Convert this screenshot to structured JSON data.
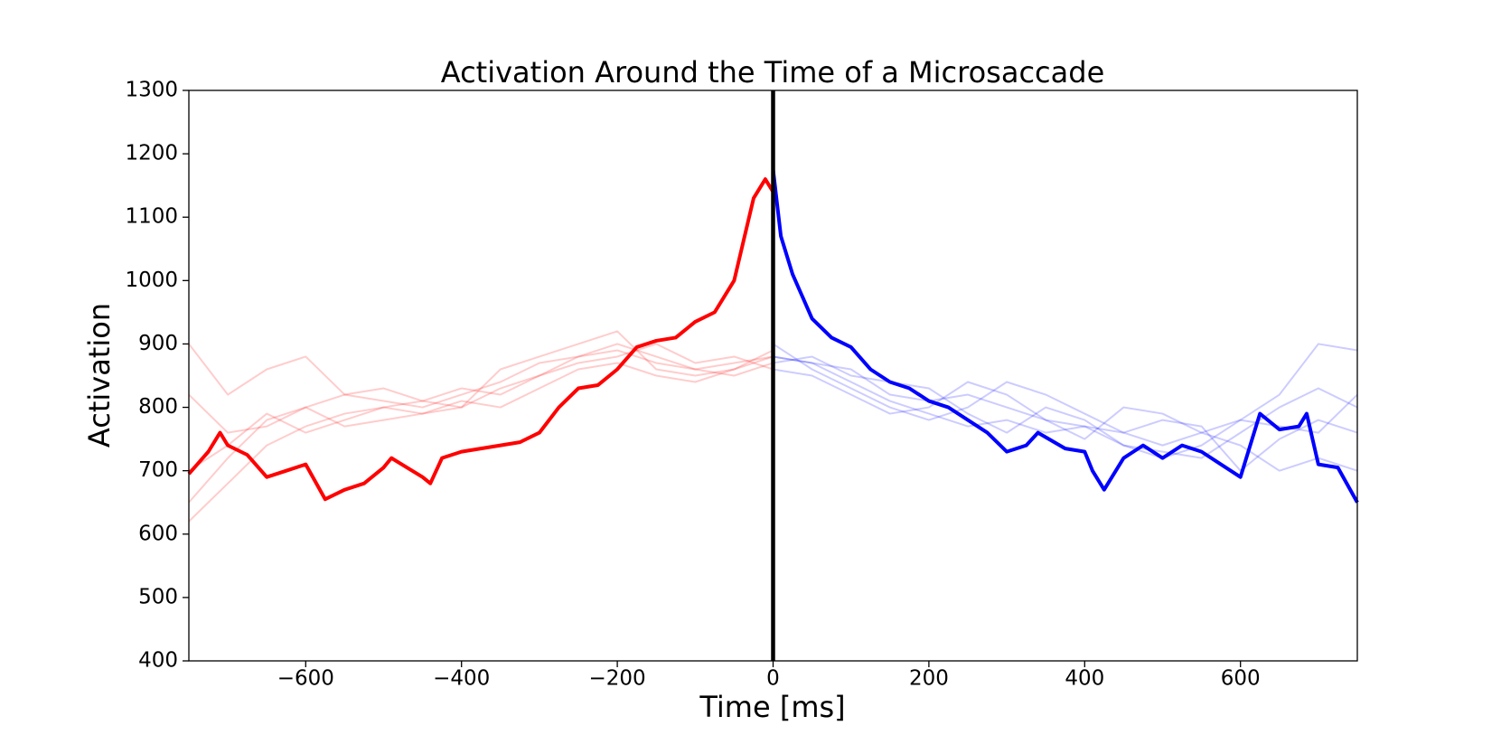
{
  "chart_data": {
    "type": "line",
    "title": "Activation Around the Time of a Microsaccade",
    "x_label": "Time [ms]",
    "y_label": "Activation",
    "xlim": [
      -750,
      750
    ],
    "ylim": [
      400,
      1300
    ],
    "xticks": [
      {
        "value": -600,
        "label": "−600"
      },
      {
        "value": -400,
        "label": "−400"
      },
      {
        "value": -200,
        "label": "−200"
      },
      0,
      200,
      400,
      600
    ],
    "yticks": [
      400,
      500,
      600,
      700,
      800,
      900,
      1000,
      1100,
      1200,
      1300
    ],
    "vline": {
      "x": 0,
      "color": "#000000"
    },
    "series": [
      {
        "color": "rgba(255,0,0,0.2)",
        "width": 2,
        "x": [
          -750,
          -700,
          -650,
          -600,
          -550,
          -500,
          -450,
          -400,
          -350,
          -300,
          -250,
          -200,
          -150,
          -100,
          -50,
          0
        ],
        "values": [
          900,
          820,
          860,
          880,
          820,
          810,
          800,
          820,
          840,
          870,
          880,
          890,
          870,
          860,
          870,
          880
        ]
      },
      {
        "color": "rgba(255,0,0,0.2)",
        "width": 2,
        "x": [
          -750,
          -700,
          -650,
          -600,
          -550,
          -500,
          -450,
          -400,
          -350,
          -300,
          -250,
          -200,
          -150,
          -100,
          -50,
          0
        ],
        "values": [
          650,
          720,
          780,
          800,
          770,
          780,
          790,
          800,
          830,
          850,
          880,
          900,
          880,
          860,
          850,
          870
        ]
      },
      {
        "color": "rgba(255,0,0,0.2)",
        "width": 2,
        "x": [
          -750,
          -700,
          -650,
          -600,
          -550,
          -500,
          -450,
          -400,
          -350,
          -300,
          -250,
          -200,
          -150,
          -100,
          -50,
          0
        ],
        "values": [
          820,
          760,
          770,
          800,
          820,
          830,
          810,
          800,
          860,
          880,
          900,
          920,
          860,
          850,
          860,
          890
        ]
      },
      {
        "color": "rgba(255,0,0,0.2)",
        "width": 2,
        "x": [
          -750,
          -700,
          -650,
          -600,
          -550,
          -500,
          -450,
          -400,
          -350,
          -300,
          -250,
          -200,
          -150,
          -100,
          -50,
          0
        ],
        "values": [
          700,
          740,
          790,
          760,
          780,
          800,
          810,
          830,
          820,
          850,
          870,
          880,
          900,
          870,
          880,
          860
        ]
      },
      {
        "color": "rgba(255,0,0,0.2)",
        "width": 2,
        "x": [
          -750,
          -700,
          -650,
          -600,
          -550,
          -500,
          -450,
          -400,
          -350,
          -300,
          -250,
          -200,
          -150,
          -100,
          -50,
          0
        ],
        "values": [
          620,
          680,
          740,
          770,
          790,
          800,
          790,
          810,
          800,
          830,
          860,
          870,
          850,
          840,
          860,
          880
        ]
      },
      {
        "color": "rgba(0,0,255,0.2)",
        "width": 2,
        "x": [
          0,
          50,
          100,
          150,
          200,
          250,
          300,
          350,
          400,
          450,
          500,
          550,
          600,
          650,
          700,
          750
        ],
        "values": [
          880,
          870,
          860,
          820,
          810,
          820,
          800,
          780,
          770,
          760,
          740,
          760,
          780,
          820,
          900,
          890
        ]
      },
      {
        "color": "rgba(0,0,255,0.2)",
        "width": 2,
        "x": [
          0,
          50,
          100,
          150,
          200,
          250,
          300,
          350,
          400,
          450,
          500,
          550,
          600,
          650,
          700,
          750
        ],
        "values": [
          870,
          880,
          850,
          840,
          830,
          790,
          760,
          800,
          780,
          740,
          730,
          720,
          760,
          800,
          830,
          800
        ]
      },
      {
        "color": "rgba(0,0,255,0.2)",
        "width": 2,
        "x": [
          0,
          50,
          100,
          150,
          200,
          250,
          300,
          350,
          400,
          450,
          500,
          550,
          600,
          650,
          700,
          750
        ],
        "values": [
          900,
          860,
          830,
          800,
          780,
          800,
          840,
          820,
          790,
          760,
          780,
          770,
          700,
          750,
          780,
          760
        ]
      },
      {
        "color": "rgba(0,0,255,0.2)",
        "width": 2,
        "x": [
          0,
          50,
          100,
          150,
          200,
          250,
          300,
          350,
          400,
          450,
          500,
          550,
          600,
          650,
          700,
          750
        ],
        "values": [
          860,
          850,
          820,
          790,
          800,
          840,
          820,
          780,
          750,
          800,
          790,
          760,
          740,
          700,
          720,
          700
        ]
      },
      {
        "color": "rgba(0,0,255,0.2)",
        "width": 2,
        "x": [
          0,
          50,
          100,
          150,
          200,
          250,
          300,
          350,
          400,
          450,
          500,
          550,
          600,
          650,
          700,
          750
        ],
        "values": [
          880,
          870,
          840,
          810,
          790,
          770,
          780,
          760,
          770,
          740,
          720,
          740,
          780,
          770,
          760,
          820
        ]
      },
      {
        "color": "#ff0000",
        "width": 4,
        "x": [
          -750,
          -725,
          -710,
          -700,
          -675,
          -650,
          -625,
          -600,
          -575,
          -550,
          -525,
          -500,
          -490,
          -450,
          -440,
          -425,
          -400,
          -375,
          -350,
          -325,
          -300,
          -275,
          -250,
          -225,
          -200,
          -175,
          -150,
          -125,
          -100,
          -75,
          -50,
          -25,
          -10,
          0
        ],
        "values": [
          695,
          730,
          760,
          740,
          725,
          690,
          700,
          710,
          655,
          670,
          680,
          705,
          720,
          690,
          680,
          720,
          730,
          735,
          740,
          745,
          760,
          800,
          830,
          835,
          860,
          895,
          905,
          910,
          935,
          950,
          1000,
          1130,
          1160,
          1140
        ]
      },
      {
        "color": "#0000ff",
        "width": 4,
        "x": [
          0,
          10,
          25,
          50,
          75,
          100,
          125,
          150,
          175,
          200,
          225,
          250,
          275,
          300,
          325,
          340,
          375,
          400,
          410,
          425,
          450,
          475,
          500,
          525,
          550,
          575,
          600,
          625,
          650,
          675,
          685,
          700,
          725,
          750
        ],
        "values": [
          1175,
          1070,
          1010,
          940,
          910,
          895,
          860,
          840,
          830,
          810,
          800,
          780,
          760,
          730,
          740,
          760,
          735,
          730,
          700,
          670,
          720,
          740,
          720,
          740,
          730,
          710,
          690,
          790,
          765,
          770,
          790,
          710,
          705,
          650
        ]
      }
    ]
  }
}
